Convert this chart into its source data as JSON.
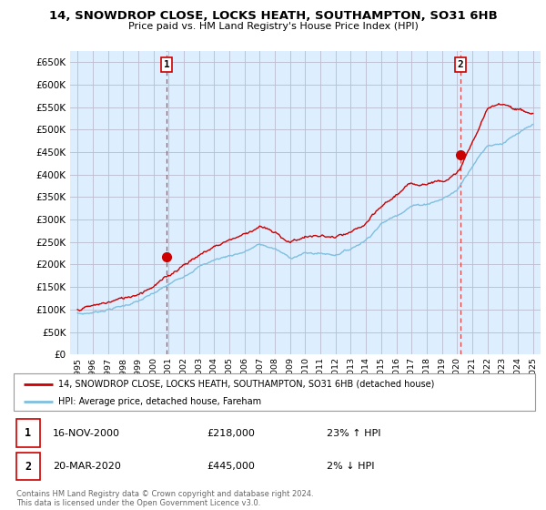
{
  "title": "14, SNOWDROP CLOSE, LOCKS HEATH, SOUTHAMPTON, SO31 6HB",
  "subtitle": "Price paid vs. HM Land Registry's House Price Index (HPI)",
  "ylim": [
    0,
    675000
  ],
  "yticks": [
    0,
    50000,
    100000,
    150000,
    200000,
    250000,
    300000,
    350000,
    400000,
    450000,
    500000,
    550000,
    600000,
    650000
  ],
  "ytick_labels": [
    "£0",
    "£50K",
    "£100K",
    "£150K",
    "£200K",
    "£250K",
    "£300K",
    "£350K",
    "£400K",
    "£450K",
    "£500K",
    "£550K",
    "£600K",
    "£650K"
  ],
  "sale1": {
    "date_num": 2000.88,
    "price": 218000,
    "label": "1",
    "date_str": "16-NOV-2000",
    "price_str": "£218,000",
    "hpi_str": "23% ↑ HPI"
  },
  "sale2": {
    "date_num": 2020.22,
    "price": 445000,
    "label": "2",
    "date_str": "20-MAR-2020",
    "price_str": "£445,000",
    "hpi_str": "2% ↓ HPI"
  },
  "hpi_color": "#7fbfdf",
  "hpi_fill_color": "#ddeeff",
  "price_color": "#cc0000",
  "dashed_color": "#dd4444",
  "background_color": "#ffffff",
  "chart_bg_color": "#ddeeff",
  "grid_color": "#bbbbcc",
  "legend_label_price": "14, SNOWDROP CLOSE, LOCKS HEATH, SOUTHAMPTON, SO31 6HB (detached house)",
  "legend_label_hpi": "HPI: Average price, detached house, Fareham",
  "footnote": "Contains HM Land Registry data © Crown copyright and database right 2024.\nThis data is licensed under the Open Government Licence v3.0.",
  "xlim_start": 1994.5,
  "xlim_end": 2025.5,
  "hpi_anchors_x": [
    1995,
    1996,
    1997,
    1998,
    1999,
    2000,
    2001,
    2002,
    2003,
    2004,
    2005,
    2006,
    2007,
    2008,
    2009,
    2010,
    2011,
    2012,
    2013,
    2014,
    2015,
    2016,
    2017,
    2018,
    2019,
    2020,
    2021,
    2022,
    2023,
    2024,
    2025
  ],
  "hpi_anchors_y": [
    88000,
    93000,
    100000,
    108000,
    118000,
    135000,
    155000,
    175000,
    195000,
    210000,
    220000,
    228000,
    245000,
    235000,
    215000,
    225000,
    225000,
    222000,
    235000,
    255000,
    290000,
    310000,
    330000,
    335000,
    345000,
    365000,
    420000,
    465000,
    470000,
    490000,
    510000
  ],
  "price_anchors_x": [
    1995,
    1996,
    1997,
    1998,
    1999,
    2000,
    2001,
    2002,
    2003,
    2004,
    2005,
    2006,
    2007,
    2008,
    2009,
    2010,
    2011,
    2012,
    2013,
    2014,
    2015,
    2016,
    2017,
    2018,
    2019,
    2020,
    2021,
    2022,
    2023,
    2024,
    2025
  ],
  "price_anchors_y": [
    100000,
    108000,
    116000,
    125000,
    135000,
    152000,
    175000,
    200000,
    220000,
    240000,
    255000,
    268000,
    285000,
    270000,
    250000,
    262000,
    263000,
    260000,
    270000,
    290000,
    328000,
    355000,
    380000,
    380000,
    388000,
    400000,
    470000,
    545000,
    560000,
    545000,
    535000
  ]
}
